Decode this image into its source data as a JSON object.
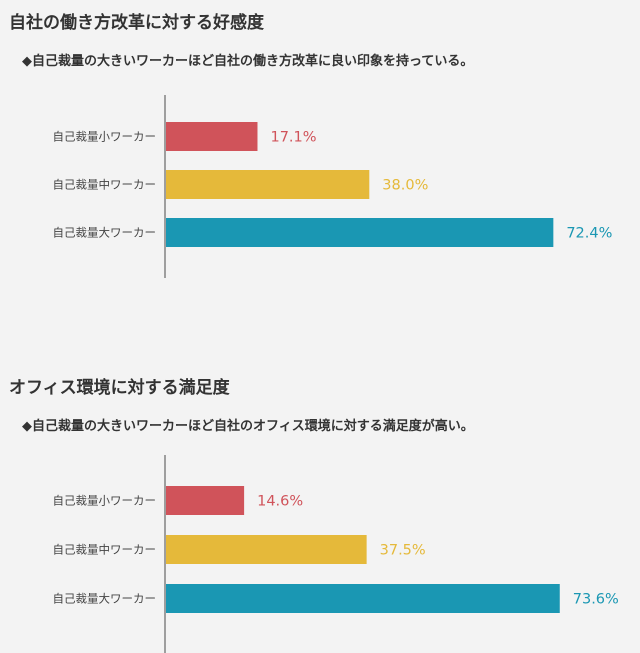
{
  "colors": {
    "small": "#d0535a",
    "medium": "#e5b93a",
    "large": "#1a97b3",
    "axis": "#666666",
    "label": "#444444"
  },
  "chart_data": [
    {
      "type": "bar",
      "orientation": "horizontal",
      "title": "自社の働き方改革に対する好感度",
      "subtitle": "◆自己裁量の大きいワーカーほど自社の働き方改革に良い印象を持っている。",
      "categories": [
        "自己裁量小ワーカー",
        "自己裁量中ワーカー",
        "自己裁量大ワーカー"
      ],
      "values": [
        17.1,
        38.0,
        72.4
      ],
      "value_labels": [
        "17.1%",
        "38.0%",
        "72.4%"
      ],
      "xlim": [
        0,
        100
      ],
      "grid": false
    },
    {
      "type": "bar",
      "orientation": "horizontal",
      "title": "オフィス環境に対する満足度",
      "subtitle": "◆自己裁量の大きいワーカーほど自社のオフィス環境に対する満足度が高い。",
      "categories": [
        "自己裁量小ワーカー",
        "自己裁量中ワーカー",
        "自己裁量大ワーカー"
      ],
      "values": [
        14.6,
        37.5,
        73.6
      ],
      "value_labels": [
        "14.6%",
        "37.5%",
        "73.6%"
      ],
      "xlim": [
        0,
        100
      ],
      "grid": false
    }
  ]
}
